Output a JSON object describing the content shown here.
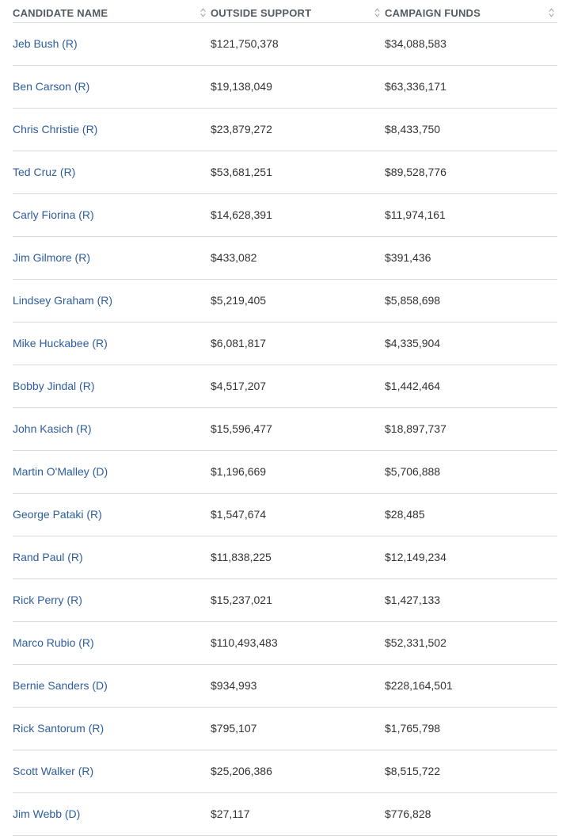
{
  "table": {
    "headers": {
      "name": "CANDIDATE NAME",
      "outside": "OUTSIDE SUPPORT",
      "funds": "CAMPAIGN FUNDS"
    },
    "rows": [
      {
        "name": "Jeb Bush (R)",
        "outside": "$121,750,378",
        "funds": "$34,088,583"
      },
      {
        "name": "Ben Carson (R)",
        "outside": "$19,138,049",
        "funds": "$63,336,171"
      },
      {
        "name": "Chris Christie (R)",
        "outside": "$23,879,272",
        "funds": "$8,433,750"
      },
      {
        "name": "Ted Cruz (R)",
        "outside": "$53,681,251",
        "funds": "$89,528,776"
      },
      {
        "name": "Carly Fiorina (R)",
        "outside": "$14,628,391",
        "funds": "$11,974,161"
      },
      {
        "name": "Jim Gilmore (R)",
        "outside": "$433,082",
        "funds": "$391,436"
      },
      {
        "name": "Lindsey Graham (R)",
        "outside": "$5,219,405",
        "funds": "$5,858,698"
      },
      {
        "name": "Mike Huckabee (R)",
        "outside": "$6,081,817",
        "funds": "$4,335,904"
      },
      {
        "name": "Bobby Jindal (R)",
        "outside": "$4,517,207",
        "funds": "$1,442,464"
      },
      {
        "name": "John Kasich (R)",
        "outside": "$15,596,477",
        "funds": "$18,897,737"
      },
      {
        "name": "Martin O'Malley (D)",
        "outside": "$1,196,669",
        "funds": "$5,706,888"
      },
      {
        "name": "George Pataki (R)",
        "outside": "$1,547,674",
        "funds": "$28,485"
      },
      {
        "name": "Rand Paul (R)",
        "outside": "$11,838,225",
        "funds": "$12,149,234"
      },
      {
        "name": "Rick Perry (R)",
        "outside": "$15,237,021",
        "funds": "$1,427,133"
      },
      {
        "name": "Marco Rubio (R)",
        "outside": "$110,493,483",
        "funds": "$52,331,502"
      },
      {
        "name": "Bernie Sanders (D)",
        "outside": "$934,993",
        "funds": "$228,164,501"
      },
      {
        "name": "Rick Santorum (R)",
        "outside": "$795,107",
        "funds": "$1,765,798"
      },
      {
        "name": "Scott Walker (R)",
        "outside": "$25,206,386",
        "funds": "$8,515,722"
      },
      {
        "name": "Jim Webb (D)",
        "outside": "$27,117",
        "funds": "$776,828"
      }
    ]
  },
  "colors": {
    "link": "#2e5d9e",
    "header_text": "#555a63",
    "divider": "#d9d9d9"
  },
  "icons": {
    "sort": "sort-updown-icon"
  }
}
